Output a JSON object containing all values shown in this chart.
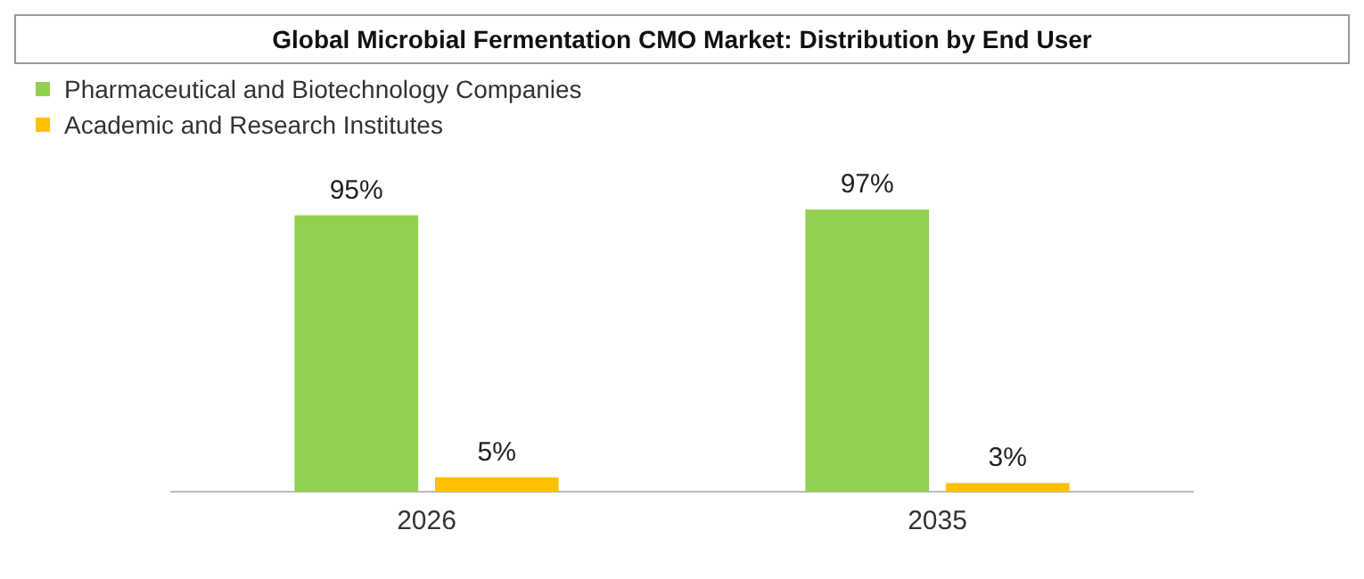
{
  "chart_data": {
    "type": "bar",
    "title": "Global Microbial Fermentation CMO Market: Distribution by End User",
    "categories": [
      "2026",
      "2035"
    ],
    "series": [
      {
        "name": "Pharmaceutical and Biotechnology Companies",
        "color": "#92d050",
        "values": [
          95,
          97
        ],
        "value_labels": [
          "95%",
          "97%"
        ]
      },
      {
        "name": "Academic and Research Institutes",
        "color": "#ffc000",
        "values": [
          5,
          3
        ],
        "value_labels": [
          "5%",
          "3%"
        ]
      }
    ],
    "legend": "top left",
    "grid": false
  }
}
